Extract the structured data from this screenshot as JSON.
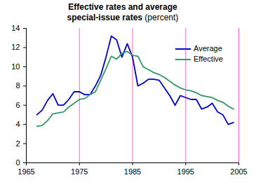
{
  "chart_data": {
    "type": "line",
    "title": "Effective rates and average\nspecial-issue rates",
    "subtitle": "(percent)",
    "x": [
      1967,
      1968,
      1969,
      1970,
      1971,
      1972,
      1973,
      1974,
      1975,
      1976,
      1977,
      1978,
      1979,
      1980,
      1981,
      1982,
      1983,
      1984,
      1985,
      1986,
      1987,
      1988,
      1989,
      1990,
      1991,
      1992,
      1993,
      1994,
      1995,
      1996,
      1997,
      1998,
      1999,
      2000,
      2001,
      2002,
      2003,
      2004
    ],
    "series": [
      {
        "name": "Average",
        "color": "#0000cc",
        "values": [
          5.0,
          5.5,
          6.5,
          7.2,
          6.0,
          6.0,
          6.6,
          7.4,
          7.4,
          7.1,
          7.1,
          8.0,
          9.1,
          11.0,
          13.2,
          12.8,
          11.0,
          12.4,
          11.0,
          8.0,
          8.3,
          8.7,
          8.7,
          8.6,
          7.8,
          7.0,
          6.0,
          7.0,
          6.8,
          6.6,
          6.6,
          5.6,
          5.8,
          6.2,
          5.3,
          5.0,
          4.0,
          4.2
        ]
      },
      {
        "name": "Effective",
        "color": "#339966",
        "values": [
          3.8,
          3.9,
          4.4,
          5.1,
          5.2,
          5.3,
          5.8,
          6.2,
          6.6,
          6.7,
          7.1,
          7.4,
          8.6,
          9.8,
          11.1,
          10.8,
          11.4,
          11.6,
          11.2,
          11.1,
          10.0,
          9.7,
          9.4,
          9.2,
          8.9,
          8.5,
          8.1,
          7.8,
          7.6,
          7.5,
          7.3,
          7.0,
          6.9,
          6.8,
          6.5,
          6.3,
          5.9,
          5.6
        ]
      }
    ],
    "xlim": [
      1965,
      2005
    ],
    "xticks": [
      1965,
      1975,
      1985,
      1995,
      2005
    ],
    "ylim": [
      0,
      14
    ],
    "yticks": [
      0,
      2,
      4,
      6,
      8,
      10,
      12,
      14
    ],
    "grid": "x",
    "legend": "upper right"
  }
}
